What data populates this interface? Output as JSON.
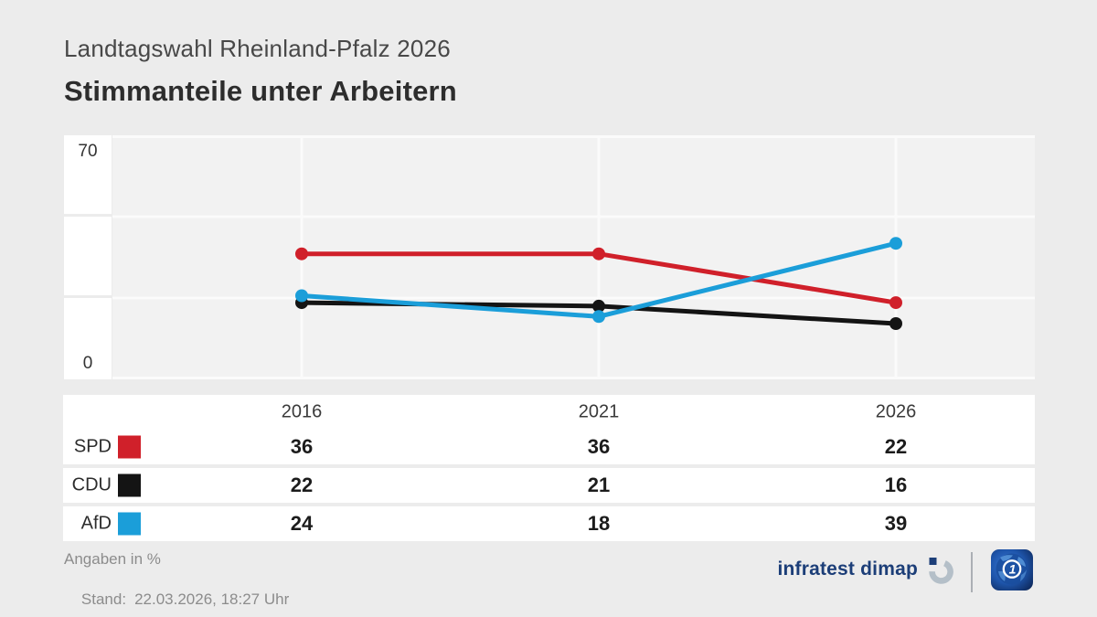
{
  "header": {
    "subtitle": "Landtagswahl Rheinland-Pfalz 2026",
    "title": "Stimmanteile unter Arbeitern"
  },
  "chart_data": {
    "type": "line",
    "x": [
      "2016",
      "2021",
      "2026"
    ],
    "series": [
      {
        "name": "SPD",
        "color": "#d0202a",
        "values": [
          36,
          36,
          22
        ]
      },
      {
        "name": "CDU",
        "color": "#141414",
        "values": [
          22,
          21,
          16
        ]
      },
      {
        "name": "AfD",
        "color": "#1b9ed9",
        "values": [
          24,
          18,
          39
        ]
      }
    ],
    "ylim": [
      0,
      70
    ],
    "yticks": [
      0,
      70
    ],
    "unit": "%",
    "grid": "white horizontal lines at thirds, white vertical line per year",
    "legend_position": "table rows below chart"
  },
  "footer": {
    "note": "Angaben in %",
    "stand_label": "Stand:",
    "stand_value": "22.03.2026, 18:27 Uhr",
    "brand": "infratest dimap"
  },
  "colors": {
    "page_bg": "#ececec",
    "plot_bg": "#f2f2f2",
    "grid_line": "#fbfbfb",
    "row_bg": "#ffffff",
    "brand_navy": "#1c3e78",
    "footer_gray": "#8c8c8c"
  }
}
